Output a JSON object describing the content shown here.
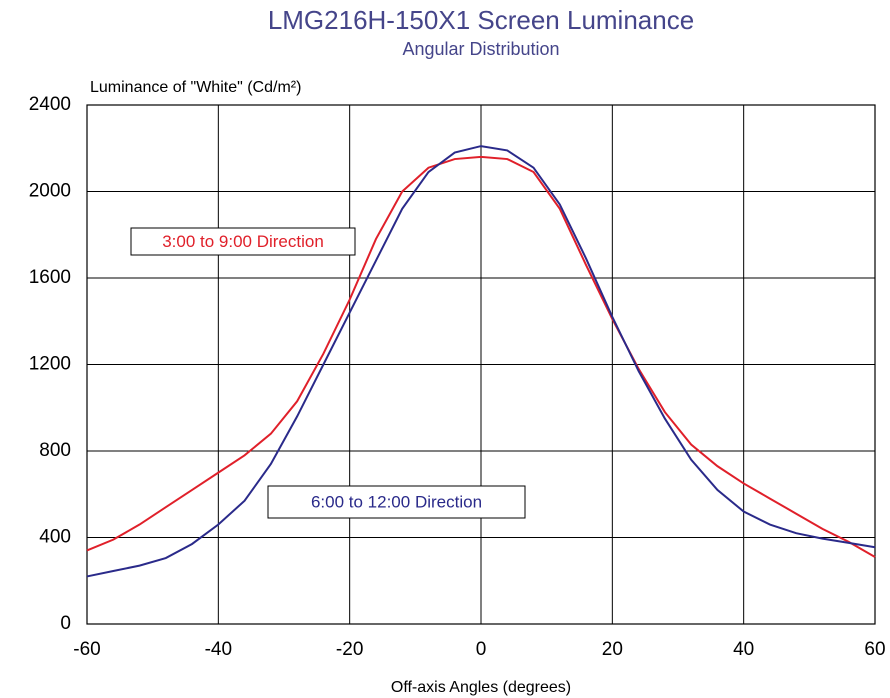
{
  "chart_data": {
    "type": "line",
    "title": "LMG216H-150X1 Screen Luminance",
    "subtitle": "Angular Distribution",
    "y_label": "Luminance of \"White\" (Cd/m²)",
    "x_label": "Off-axis Angles (degrees)",
    "x": [
      -60,
      -56,
      -52,
      -48,
      -44,
      -40,
      -36,
      -32,
      -28,
      -24,
      -20,
      -16,
      -12,
      -8,
      -4,
      0,
      4,
      8,
      12,
      16,
      20,
      24,
      28,
      32,
      36,
      40,
      44,
      48,
      52,
      56,
      60
    ],
    "series": [
      {
        "name": "3:00 to 9:00 Direction",
        "color": "#e0202a",
        "values": [
          340,
          390,
          460,
          540,
          620,
          700,
          780,
          880,
          1030,
          1250,
          1500,
          1780,
          2000,
          2110,
          2150,
          2160,
          2150,
          2090,
          1920,
          1660,
          1410,
          1180,
          980,
          830,
          730,
          650,
          580,
          510,
          440,
          380,
          310
        ]
      },
      {
        "name": "6:00 to 12:00 Direction",
        "color": "#2a2a8a",
        "values": [
          220,
          245,
          270,
          305,
          370,
          460,
          570,
          740,
          960,
          1200,
          1440,
          1680,
          1920,
          2090,
          2180,
          2210,
          2190,
          2110,
          1940,
          1690,
          1420,
          1170,
          950,
          760,
          620,
          520,
          460,
          420,
          395,
          375,
          355
        ]
      }
    ],
    "xlim": [
      -60,
      60
    ],
    "xticks": [
      -60,
      -40,
      -20,
      0,
      20,
      40,
      60
    ],
    "ylim": [
      0,
      2400
    ],
    "yticks": [
      0,
      400,
      800,
      1200,
      1600,
      2000,
      2400
    ],
    "grid": true
  }
}
